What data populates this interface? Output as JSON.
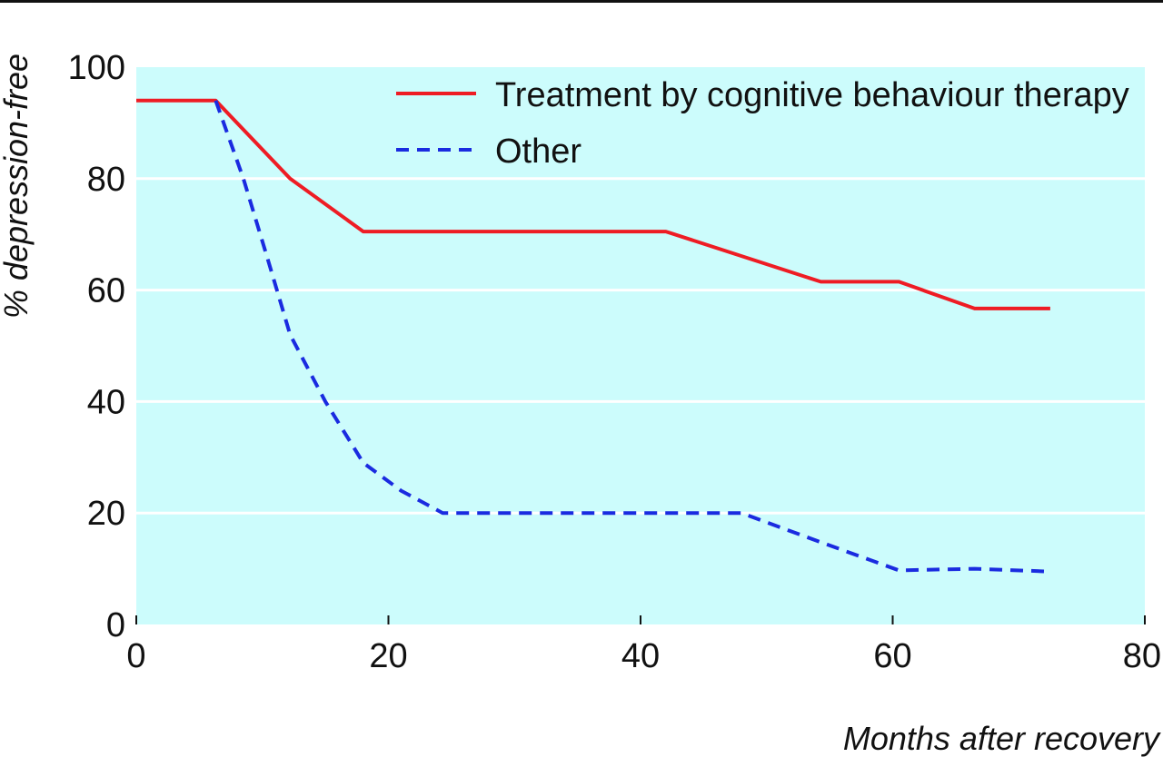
{
  "chart_data": {
    "type": "line",
    "xlabel": "Months after recovery",
    "ylabel": "% depression-free",
    "xlim": [
      0,
      80
    ],
    "ylim": [
      0,
      100
    ],
    "xticks": [
      0,
      20,
      40,
      60,
      80
    ],
    "yticks": [
      0,
      20,
      40,
      60,
      80,
      100
    ],
    "grid": "horizontal",
    "legend_position": "top-right",
    "background_color": "#ccfcfc",
    "series": [
      {
        "name": "Treatment by cognitive behaviour therapy",
        "color": "#ee1c24",
        "style": "solid",
        "x": [
          0,
          6.3,
          12.2,
          18,
          42,
          54.3,
          60.5,
          66.5,
          72.5
        ],
        "y": [
          94,
          94,
          80,
          70.5,
          70.5,
          61.5,
          61.5,
          56.7,
          56.7
        ]
      },
      {
        "name": "Other",
        "color": "#1a2be0",
        "style": "dashed",
        "x": [
          6.3,
          8.5,
          10.5,
          12.2,
          15,
          18,
          21,
          24.3,
          48,
          54,
          60.5,
          66.5,
          72.5
        ],
        "y": [
          94,
          80,
          65,
          52,
          40,
          29,
          24,
          20,
          20,
          15,
          9.7,
          10,
          9.5
        ]
      }
    ]
  }
}
